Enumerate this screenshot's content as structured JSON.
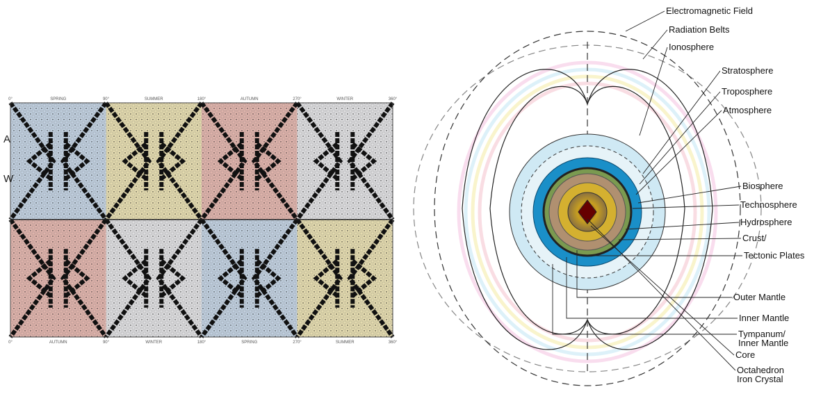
{
  "grid": {
    "top_labels": [
      "0°",
      "SPRING",
      "90°",
      "SUMMER",
      "180°",
      "AUTUMN",
      "270°",
      "WINTER",
      "360°"
    ],
    "bottom_labels": [
      "0°",
      "AUTUMN",
      "90°",
      "WINTER",
      "180°",
      "SPRING",
      "270°",
      "SUMMER",
      "360°"
    ],
    "side_labels": [
      "A",
      "W"
    ]
  },
  "diagram": {
    "labels": [
      [
        "Electromagnetic Field"
      ],
      [
        "Radiation Belts"
      ],
      [
        "Ionosphere"
      ],
      [
        "Stratosphere"
      ],
      [
        "Troposphere"
      ],
      [
        "Atmosphere"
      ],
      [
        "Biosphere"
      ],
      [
        "Technosphere"
      ],
      [
        "Hydrosphere"
      ],
      [
        "Crust/"
      ],
      [
        "Tectonic Plates"
      ],
      [
        "Outer Mantle"
      ],
      [
        "Inner Mantle"
      ],
      [
        "Tympanum/",
        "Inner Mantle"
      ],
      [
        "Core"
      ],
      [
        "Octahedron",
        "Iron Crystal"
      ]
    ]
  }
}
